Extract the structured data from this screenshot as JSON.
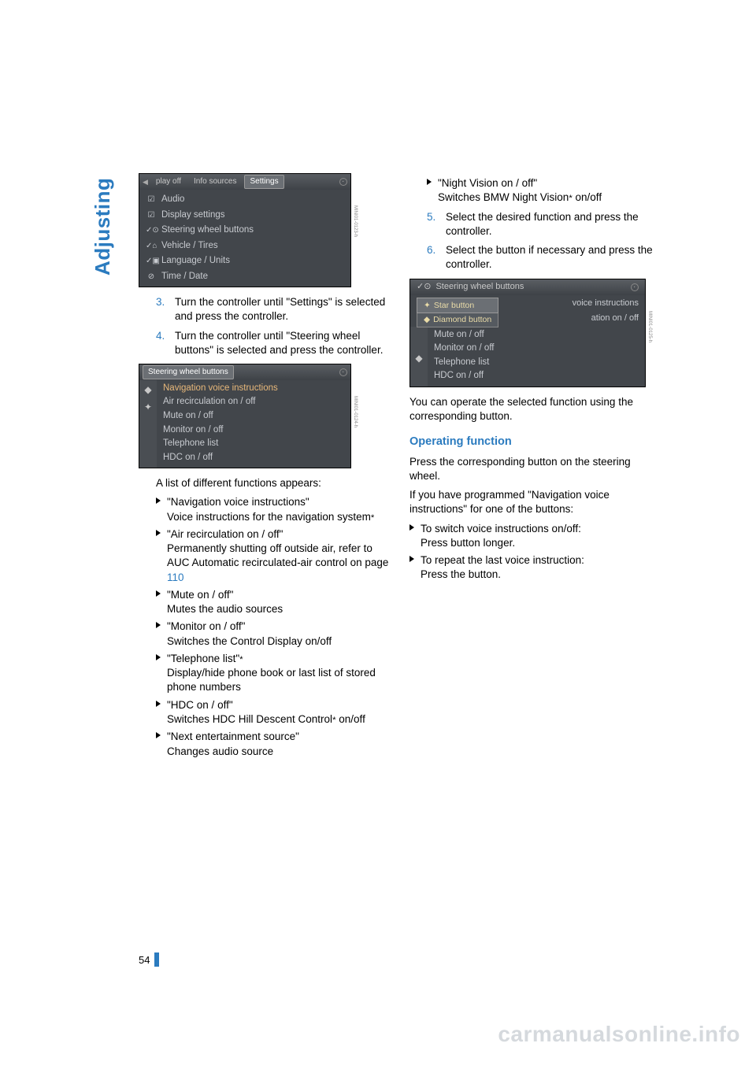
{
  "section_label": "Adjusting",
  "page_number": "54",
  "watermark": "carmanualsonline.info",
  "screenshot1": {
    "tabs": {
      "left_arrow": "◀",
      "tab1": "play off",
      "tab2": "Info sources",
      "tab3_selected": "Settings"
    },
    "items": [
      {
        "icon": "☑",
        "label": "Audio"
      },
      {
        "icon": "☑",
        "label": "Display settings"
      },
      {
        "icon": "✓⊙",
        "label": "Steering wheel buttons"
      },
      {
        "icon": "✓⌂",
        "label": "Vehicle / Tires"
      },
      {
        "icon": "✓▣",
        "label": "Language / Units"
      },
      {
        "icon": "⊘",
        "label": "Time / Date"
      }
    ],
    "code": "MINI01-0123-h"
  },
  "steps_a": [
    {
      "n": "3.",
      "t": "Turn the controller until \"Settings\" is selected and press the controller."
    },
    {
      "n": "4.",
      "t": "Turn the controller until \"Steering wheel buttons\" is selected and press the controller."
    }
  ],
  "screenshot2": {
    "title_selected": "Steering wheel buttons",
    "side": [
      "◆",
      "✦"
    ],
    "items": [
      "Navigation voice instructions",
      "Air recirculation on / off",
      "Mute on / off",
      "Monitor on / off",
      "Telephone list",
      "HDC on / off"
    ],
    "highlight_index": 0,
    "code": "MINI01-0124-h"
  },
  "list_intro": "A list of different functions appears:",
  "functions": [
    {
      "q": "Navigation voice instructions",
      "d1": "Voice instructions for the navigation system",
      "ast_after_d1": true
    },
    {
      "q": "Air recirculation on / off",
      "d1": "Permanently shutting off outside air, refer to AUC Automatic recirculated-air control on page ",
      "link": "110"
    },
    {
      "q": "Mute on / off",
      "d1": "Mutes the audio sources"
    },
    {
      "q": "Monitor on / off",
      "d1": "Switches the Control Display on/off"
    },
    {
      "q": "Telephone list",
      "ast_after_q": true,
      "d1": "Display/hide phone book or last list of stored phone numbers"
    },
    {
      "q": "HDC on / off",
      "d1": "Switches HDC Hill Descent Control",
      "ast_after_d1": true,
      "d2": " on/off"
    },
    {
      "q": "Next entertainment source",
      "d1": "Changes audio source"
    }
  ],
  "right_first_bullet": {
    "q": "Night Vision on / off",
    "d1": "Switches BMW Night Vision",
    "ast": true,
    "d2": " on/off"
  },
  "steps_b": [
    {
      "n": "5.",
      "t": "Select the desired function and press the controller."
    },
    {
      "n": "6.",
      "t": "Select the button if necessary and press the controller."
    }
  ],
  "screenshot3": {
    "title": "Steering wheel buttons",
    "title_icon": "✓⊙",
    "popup": [
      {
        "icon": "✦",
        "label": "Star button",
        "selected": true
      },
      {
        "icon": "◆",
        "label": "Diamond button"
      }
    ],
    "bg_items": [
      "voice instructions",
      "ation on / off"
    ],
    "side": [
      "◆"
    ],
    "items": [
      "Mute on / off",
      "Monitor on / off",
      "Telephone list",
      "HDC on / off"
    ],
    "code": "MINI01-0125-h"
  },
  "after_ss3": "You can operate the selected function using the corresponding button.",
  "heading": "Operating function",
  "op_para1": "Press the corresponding button on the steering wheel.",
  "op_para2": "If you have programmed \"Navigation voice instructions\" for one of the buttons:",
  "op_bullets": [
    {
      "l1": "To switch voice instructions on/off:",
      "l2": "Press button longer."
    },
    {
      "l1": "To repeat the last voice instruction:",
      "l2": "Press the button."
    }
  ]
}
